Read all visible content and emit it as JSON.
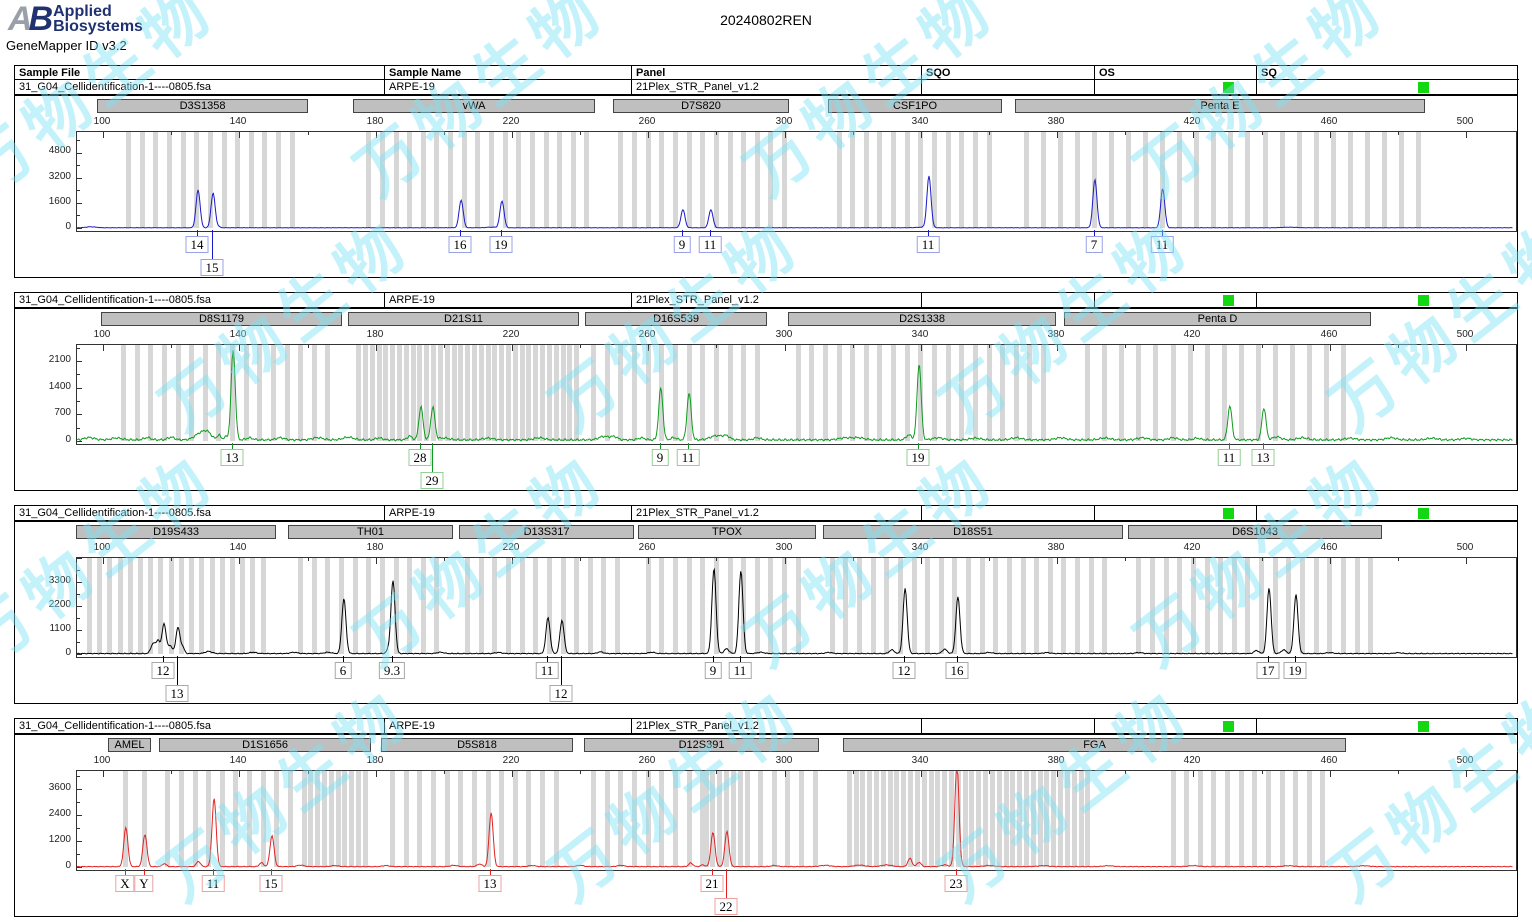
{
  "app": {
    "logo_a": "A",
    "logo_b": "B",
    "brand_line1": "Applied",
    "brand_line2": "Biosystems",
    "version": "GeneMapper ID v3.2",
    "title": "20240802REN"
  },
  "watermark": {
    "text": "万物生物"
  },
  "table": {
    "columns": [
      "Sample File",
      "Sample Name",
      "Panel",
      "SQO",
      "OS",
      "SQ"
    ]
  },
  "sample": {
    "file": "31_G04_Cellidentification-1----0805.fsa",
    "name": "ARPE-19",
    "panel": "21Plex_STR_Panel_v1.2",
    "sqo": "",
    "os_flag": "green-square",
    "sq_flag": "green-square"
  },
  "axis": {
    "x_ticks": [
      100,
      140,
      180,
      220,
      260,
      300,
      340,
      380,
      420,
      460,
      500
    ],
    "x_minor_step": 20,
    "x_range": [
      92,
      514
    ],
    "x_unit": "bp (size)",
    "y_unit": "RFU"
  },
  "chart_data": [
    {
      "type": "line",
      "dye": "blue",
      "color": "#1a1ac8",
      "label_border": "#9aa2e6",
      "y_ticks": [
        0,
        1600,
        3200,
        4800
      ],
      "y_max": 6100,
      "ripple": 30,
      "markers": [
        {
          "name": "D3S1358",
          "range": [
            98.5,
            160.5
          ],
          "bins": [
            [
              107.5,
              155.5,
              4
            ]
          ]
        },
        {
          "name": "vWA",
          "range": [
            173.7,
            244.7
          ],
          "bins": [
            [
              178,
              242,
              4
            ]
          ]
        },
        {
          "name": "D7S820",
          "range": [
            250,
            301.6
          ],
          "bins": [
            [
              252,
              300,
              4
            ]
          ]
        },
        {
          "name": "CSF1PO",
          "range": [
            313.1,
            364.1
          ],
          "bins": [
            [
              316,
              360,
              4
            ]
          ]
        },
        {
          "name": "Penta E",
          "range": [
            367.9,
            488.2
          ],
          "bins": [
            [
              371,
              486,
              5
            ]
          ]
        }
      ],
      "peaks": [
        {
          "marker": "D3S1358",
          "allele": "14",
          "bp": 127.9,
          "rfu": 2400,
          "row": 1
        },
        {
          "marker": "D3S1358",
          "allele": "15",
          "bp": 132.3,
          "rfu": 2200,
          "row": 2
        },
        {
          "marker": "vWA",
          "allele": "16",
          "bp": 205.1,
          "rfu": 1750,
          "row": 1
        },
        {
          "marker": "vWA",
          "allele": "19",
          "bp": 217.1,
          "rfu": 1700,
          "row": 1
        },
        {
          "marker": "D7S820",
          "allele": "9",
          "bp": 270.2,
          "rfu": 1150,
          "row": 1
        },
        {
          "marker": "D7S820",
          "allele": "11",
          "bp": 278.4,
          "rfu": 1150,
          "row": 1
        },
        {
          "marker": "CSF1PO",
          "allele": "11",
          "bp": 342.4,
          "rfu": 3250,
          "row": 1
        },
        {
          "marker": "Penta E",
          "allele": "7",
          "bp": 391.1,
          "rfu": 3050,
          "row": 1
        },
        {
          "marker": "Penta E",
          "allele": "11",
          "bp": 411.0,
          "rfu": 2480,
          "row": 1
        }
      ],
      "noise": [
        [
          96.5,
          60,
          1.5
        ],
        [
          133.8,
          70,
          0.6
        ],
        [
          214,
          40,
          1.5
        ],
        [
          341,
          40,
          2
        ],
        [
          448,
          35,
          2
        ]
      ]
    },
    {
      "type": "line",
      "dye": "green",
      "color": "#0f9b20",
      "label_border": "#93d093",
      "y_ticks": [
        0,
        700,
        1400,
        2100
      ],
      "y_max": 2520,
      "ripple": 60,
      "markers": [
        {
          "name": "D8S1179",
          "range": [
            99.7,
            170.4
          ],
          "bins": [
            [
              106,
              166,
              4
            ]
          ]
        },
        {
          "name": "D21S11",
          "range": [
            172.2,
            240
          ],
          "bins": [
            [
              175,
              239,
              2
            ]
          ]
        },
        {
          "name": "D16S539",
          "range": [
            241.7,
            295.1
          ],
          "bins": [
            [
              244,
              292,
              4
            ]
          ]
        },
        {
          "name": "D2S1338",
          "range": [
            301.3,
            380
          ],
          "bins": [
            [
              304,
              376,
              4
            ]
          ]
        },
        {
          "name": "Penta D",
          "range": [
            382.3,
            472.4
          ],
          "bins": [
            [
              389,
              464,
              5
            ]
          ]
        }
      ],
      "peaks": [
        {
          "marker": "D8S1179",
          "allele": "13",
          "bp": 138.2,
          "rfu": 2360,
          "row": 1
        },
        {
          "marker": "D21S11",
          "allele": "28",
          "bp": 193.3,
          "rfu": 870,
          "row": 1
        },
        {
          "marker": "D21S11",
          "allele": "29",
          "bp": 196.8,
          "rfu": 860,
          "row": 2
        },
        {
          "marker": "D16S539",
          "allele": "9",
          "bp": 263.7,
          "rfu": 1360,
          "row": 1
        },
        {
          "marker": "D16S539",
          "allele": "11",
          "bp": 272.0,
          "rfu": 1230,
          "row": 1
        },
        {
          "marker": "D2S1338",
          "allele": "19",
          "bp": 339.5,
          "rfu": 2000,
          "row": 1
        },
        {
          "marker": "Penta D",
          "allele": "11",
          "bp": 430.7,
          "rfu": 890,
          "row": 1
        },
        {
          "marker": "Penta D",
          "allele": "13",
          "bp": 440.7,
          "rfu": 840,
          "row": 1
        }
      ],
      "noise": [
        [
          96,
          60,
          1.5
        ],
        [
          104,
          50,
          1.5
        ],
        [
          113,
          60,
          1
        ],
        [
          120,
          70,
          1
        ],
        [
          128.5,
          165,
          1.6
        ],
        [
          130.7,
          165,
          1.2
        ],
        [
          134,
          130,
          0.5
        ],
        [
          136,
          80,
          0.6
        ],
        [
          143,
          50,
          1
        ],
        [
          152,
          55,
          1.2
        ],
        [
          163,
          60,
          1.5
        ],
        [
          172,
          70,
          1.5
        ],
        [
          181,
          50,
          1
        ],
        [
          190,
          100,
          0.7
        ],
        [
          200,
          50,
          1.5
        ],
        [
          213,
          45,
          1.5
        ],
        [
          228,
          55,
          1.5
        ],
        [
          247,
          90,
          1.5
        ],
        [
          250,
          80,
          1
        ],
        [
          258,
          50,
          1
        ],
        [
          267.5,
          60,
          0.8
        ],
        [
          280,
          110,
          1.8
        ],
        [
          283,
          90,
          1
        ],
        [
          292,
          55,
          1
        ],
        [
          318,
          55,
          2
        ],
        [
          322,
          50,
          1.5
        ],
        [
          336.5,
          130,
          0.8
        ],
        [
          345,
          55,
          1.5
        ],
        [
          356,
          45,
          1.5
        ],
        [
          368,
          55,
          1.5
        ],
        [
          381,
          55,
          1.5
        ],
        [
          394,
          50,
          1.5
        ],
        [
          405,
          55,
          1.5
        ],
        [
          414,
          55,
          1.2
        ],
        [
          421,
          45,
          1
        ],
        [
          444.5,
          80,
          1.2
        ],
        [
          452,
          55,
          1.5
        ],
        [
          466,
          45,
          1.5
        ],
        [
          478,
          55,
          1.5
        ],
        [
          490,
          45,
          1.5
        ],
        [
          500,
          40,
          1.5
        ]
      ]
    },
    {
      "type": "line",
      "dye": "yellow-shown-black",
      "color": "#000000",
      "label_border": "#a8a8a8",
      "y_ticks": [
        0,
        1100,
        2200,
        3300
      ],
      "y_max": 4400,
      "ripple": 40,
      "markers": [
        {
          "name": "D19S433",
          "range": [
            92.5,
            151.1
          ],
          "bins": [
            [
              96,
              148,
              3
            ]
          ]
        },
        {
          "name": "TH01",
          "range": [
            154.6,
            203
          ],
          "bins": [
            [
              158,
              198,
              4
            ]
          ]
        },
        {
          "name": "D13S317",
          "range": [
            204.8,
            256.1
          ],
          "bins": [
            [
              207,
              253,
              4
            ]
          ]
        },
        {
          "name": "TPOX",
          "range": [
            257.3,
            309.5
          ],
          "bins": [
            [
              260,
              306,
              4
            ]
          ]
        },
        {
          "name": "D18S51",
          "range": [
            311.6,
            399.6
          ],
          "bins": [
            [
              314,
              396,
              4
            ]
          ]
        },
        {
          "name": "D6S1043",
          "range": [
            401.1,
            475.6
          ],
          "bins": [
            [
              404,
              472,
              4
            ]
          ]
        }
      ],
      "peaks": [
        {
          "marker": "D19S433",
          "allele": "12",
          "bp": 117.9,
          "rfu": 1380,
          "row": 1
        },
        {
          "marker": "D19S433",
          "allele": "13",
          "bp": 122.0,
          "rfu": 1200,
          "row": 2
        },
        {
          "marker": "TH01",
          "allele": "6",
          "bp": 170.7,
          "rfu": 2520,
          "row": 1
        },
        {
          "marker": "TH01",
          "allele": "9.3",
          "bp": 185.1,
          "rfu": 3340,
          "row": 1
        },
        {
          "marker": "D13S317",
          "allele": "11",
          "bp": 230.6,
          "rfu": 1650,
          "row": 1
        },
        {
          "marker": "D13S317",
          "allele": "12",
          "bp": 234.7,
          "rfu": 1520,
          "row": 2
        },
        {
          "marker": "TPOX",
          "allele": "9",
          "bp": 279.3,
          "rfu": 3890,
          "row": 1
        },
        {
          "marker": "TPOX",
          "allele": "11",
          "bp": 287.2,
          "rfu": 3800,
          "row": 1
        },
        {
          "marker": "D18S51",
          "allele": "12",
          "bp": 335.4,
          "rfu": 2980,
          "row": 1
        },
        {
          "marker": "D18S51",
          "allele": "16",
          "bp": 350.9,
          "rfu": 2600,
          "row": 1
        },
        {
          "marker": "D6S1043",
          "allele": "17",
          "bp": 442.2,
          "rfu": 3000,
          "row": 1
        },
        {
          "marker": "D6S1043",
          "allele": "19",
          "bp": 450.1,
          "rfu": 2700,
          "row": 1
        }
      ],
      "noise": [
        [
          114.8,
          480,
          0.7
        ],
        [
          116.2,
          550,
          0.5
        ],
        [
          119.7,
          360,
          0.6
        ],
        [
          123.4,
          280,
          0.5
        ],
        [
          131,
          100,
          1
        ],
        [
          144,
          60,
          1
        ],
        [
          156,
          60,
          1
        ],
        [
          166,
          60,
          1
        ],
        [
          183.6,
          140,
          0.5
        ],
        [
          199,
          60,
          1
        ],
        [
          216,
          50,
          1
        ],
        [
          246,
          80,
          0.8
        ],
        [
          261,
          60,
          1
        ],
        [
          283,
          220,
          0.7
        ],
        [
          293,
          60,
          1
        ],
        [
          313,
          50,
          1
        ],
        [
          331.5,
          170,
          0.7
        ],
        [
          347,
          200,
          0.7
        ],
        [
          360,
          50,
          1
        ],
        [
          377,
          45,
          1
        ],
        [
          404,
          45,
          1
        ],
        [
          438.5,
          140,
          0.7
        ],
        [
          446.5,
          170,
          0.7
        ],
        [
          460,
          45,
          1
        ],
        [
          480,
          40,
          1
        ]
      ]
    },
    {
      "type": "line",
      "dye": "red",
      "color": "#e32222",
      "label_border": "#f0a0a0",
      "y_ticks": [
        0,
        1200,
        2400,
        3600
      ],
      "y_max": 4430,
      "ripple": 35,
      "markers": [
        {
          "name": "AMEL",
          "range": [
            101.8,
            114.4
          ],
          "bins": [
            [
              106.7,
              112.3,
              5.6
            ]
          ]
        },
        {
          "name": "D1S1656",
          "range": [
            116.7,
            178.9
          ],
          "bins": [
            [
              119,
              159,
              4
            ],
            [
              161,
              177,
              2
            ]
          ]
        },
        {
          "name": "D5S818",
          "range": [
            181.9,
            238.2
          ],
          "bins": [
            [
              185,
              233,
              4
            ]
          ]
        },
        {
          "name": "D12S391",
          "range": [
            241.4,
            310.4
          ],
          "bins": [
            [
              244,
              276,
              4
            ],
            [
              277,
              289,
              2
            ],
            [
              293,
              309,
              4
            ]
          ]
        },
        {
          "name": "FGA",
          "range": [
            317.4,
            465
          ],
          "bins": [
            [
              319,
              389,
              2
            ],
            [
              414,
              458,
              4
            ]
          ]
        }
      ],
      "peaks": [
        {
          "marker": "AMEL",
          "allele": "X",
          "bp": 106.7,
          "rfu": 1800,
          "row": 1
        },
        {
          "marker": "AMEL",
          "allele": "Y",
          "bp": 112.3,
          "rfu": 1480,
          "row": 1
        },
        {
          "marker": "D1S1656",
          "allele": "11",
          "bp": 132.6,
          "rfu": 3140,
          "row": 1
        },
        {
          "marker": "D1S1656",
          "allele": "15",
          "bp": 149.6,
          "rfu": 1430,
          "row": 1
        },
        {
          "marker": "D5S818",
          "allele": "13",
          "bp": 213.9,
          "rfu": 2490,
          "row": 1
        },
        {
          "marker": "D12S391",
          "allele": "21",
          "bp": 279.0,
          "rfu": 1570,
          "row": 1
        },
        {
          "marker": "D12S391",
          "allele": "22",
          "bp": 283.1,
          "rfu": 1620,
          "row": 2
        },
        {
          "marker": "FGA",
          "allele": "23",
          "bp": 350.6,
          "rfu": 4800,
          "row": 1
        }
      ],
      "noise": [
        [
          118,
          140,
          0.6
        ],
        [
          128,
          240,
          0.6
        ],
        [
          146.5,
          180,
          0.6
        ],
        [
          158,
          70,
          1
        ],
        [
          168,
          50,
          1
        ],
        [
          183,
          50,
          1
        ],
        [
          203,
          60,
          1
        ],
        [
          210.5,
          120,
          0.7
        ],
        [
          226,
          50,
          1
        ],
        [
          240,
          60,
          1
        ],
        [
          252,
          60,
          1
        ],
        [
          272.5,
          170,
          0.6
        ],
        [
          276,
          80,
          0.6
        ],
        [
          297,
          50,
          1
        ],
        [
          312,
          60,
          1.5
        ],
        [
          322,
          70,
          1.5
        ],
        [
          330,
          80,
          1.5
        ],
        [
          336.8,
          380,
          0.6
        ],
        [
          339.5,
          200,
          0.6
        ],
        [
          347,
          80,
          1
        ],
        [
          360,
          50,
          1.5
        ],
        [
          376,
          45,
          1.5
        ],
        [
          395,
          40,
          1.5
        ],
        [
          420,
          45,
          1.5
        ],
        [
          448,
          40,
          1.5
        ],
        [
          470,
          40,
          1.5
        ]
      ]
    }
  ]
}
